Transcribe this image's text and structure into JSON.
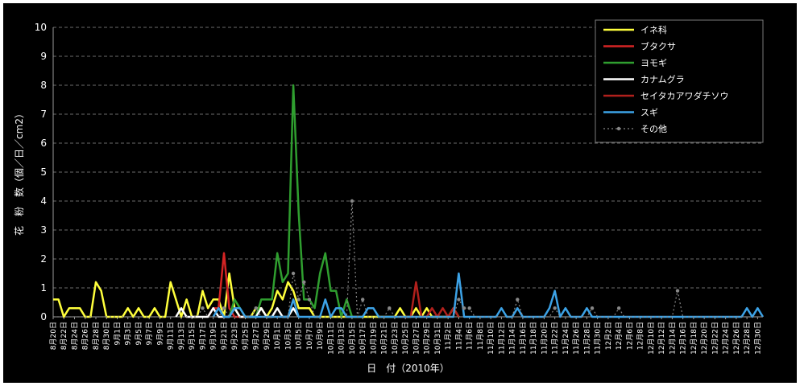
{
  "chart_data": {
    "type": "line",
    "title": "",
    "xlabel": "日　付（2010年）",
    "ylabel": "花　粉　数（個／日／cm2）",
    "ylim": [
      0,
      10
    ],
    "yticks": [
      0,
      1,
      2,
      3,
      4,
      5,
      6,
      7,
      8,
      9,
      10
    ],
    "grid": true,
    "legend_position": "top-right",
    "start_date": "2010-08-20",
    "end_date": "2010-12-31",
    "x_tick_labels": [
      "8月20日",
      "8月22日",
      "8月24日",
      "8月26日",
      "8月28日",
      "8月30日",
      "9月1日",
      "9月3日",
      "9月5日",
      "9月7日",
      "9月9日",
      "9月11日",
      "9月13日",
      "9月15日",
      "9月17日",
      "9月19日",
      "9月21日",
      "9月23日",
      "9月25日",
      "9月27日",
      "9月29日",
      "10月1日",
      "10月3日",
      "10月5日",
      "10月7日",
      "10月9日",
      "10月11日",
      "10月13日",
      "10月15日",
      "10月17日",
      "10月19日",
      "10月21日",
      "10月23日",
      "10月25日",
      "10月27日",
      "10月29日",
      "10月31日",
      "11月2日",
      "11月4日",
      "11月6日",
      "11月8日",
      "11月10日",
      "11月12日",
      "11月14日",
      "11月16日",
      "11月18日",
      "11月20日",
      "11月22日",
      "11月24日",
      "11月26日",
      "11月28日",
      "11月30日",
      "12月2日",
      "12月4日",
      "12月6日",
      "12月8日",
      "12月10日",
      "12月12日",
      "12月14日",
      "12月16日",
      "12月18日",
      "12月20日",
      "12月22日",
      "12月24日",
      "12月26日",
      "12月28日",
      "12月30日"
    ],
    "series": [
      {
        "name": "イネ科",
        "color": "#ffff3c",
        "style": "solid",
        "points": [
          [
            "8月20日",
            0.6
          ],
          [
            "8月21日",
            0.6
          ],
          [
            "8月22日",
            0
          ],
          [
            "8月23日",
            0.3
          ],
          [
            "8月24日",
            0.3
          ],
          [
            "8月25日",
            0.3
          ],
          [
            "8月26日",
            0
          ],
          [
            "8月27日",
            0
          ],
          [
            "8月28日",
            1.2
          ],
          [
            "8月29日",
            0.9
          ],
          [
            "8月30日",
            0
          ],
          [
            "8月31日",
            0
          ],
          [
            "9月1日",
            0
          ],
          [
            "9月2日",
            0
          ],
          [
            "9月3日",
            0.3
          ],
          [
            "9月4日",
            0
          ],
          [
            "9月5日",
            0.3
          ],
          [
            "9月6日",
            0
          ],
          [
            "9月7日",
            0
          ],
          [
            "9月8日",
            0.3
          ],
          [
            "9月9日",
            0
          ],
          [
            "9月10日",
            0
          ],
          [
            "9月11日",
            1.2
          ],
          [
            "9月12日",
            0.6
          ],
          [
            "9月13日",
            0
          ],
          [
            "9月14日",
            0.6
          ],
          [
            "9月15日",
            0
          ],
          [
            "9月16日",
            0
          ],
          [
            "9月17日",
            0.9
          ],
          [
            "9月18日",
            0.3
          ],
          [
            "9月19日",
            0.6
          ],
          [
            "9月20日",
            0.6
          ],
          [
            "9月21日",
            0
          ],
          [
            "9月22日",
            1.5
          ],
          [
            "9月23日",
            0.3
          ],
          [
            "9月24日",
            0
          ],
          [
            "9月25日",
            0
          ],
          [
            "9月26日",
            0
          ],
          [
            "9月27日",
            0.3
          ],
          [
            "9月28日",
            0.3
          ],
          [
            "9月29日",
            0
          ],
          [
            "9月30日",
            0.3
          ],
          [
            "10月1日",
            0.9
          ],
          [
            "10月2日",
            0.6
          ],
          [
            "10月3日",
            1.2
          ],
          [
            "10月4日",
            0.9
          ],
          [
            "10月5日",
            0.3
          ],
          [
            "10月6日",
            0.3
          ],
          [
            "10月7日",
            0.3
          ],
          [
            "10月8日",
            0
          ],
          [
            "10月9日",
            0
          ],
          [
            "10月10日",
            0
          ],
          [
            "10月11日",
            0
          ],
          [
            "10月12日",
            0
          ],
          [
            "10月13日",
            0
          ],
          [
            "10月14日",
            0
          ],
          [
            "10月15日",
            0
          ],
          [
            "10月21日",
            0
          ],
          [
            "10月22日",
            0
          ],
          [
            "10月23日",
            0
          ],
          [
            "10月24日",
            0.3
          ],
          [
            "10月25日",
            0
          ],
          [
            "10月26日",
            0
          ],
          [
            "10月27日",
            0.3
          ],
          [
            "10月28日",
            0
          ],
          [
            "10月29日",
            0.3
          ],
          [
            "10月30日",
            0
          ],
          [
            "10月31日",
            0
          ],
          [
            "11月1日",
            0
          ],
          [
            "11月2日",
            0
          ],
          [
            "11月3日",
            0.3
          ],
          [
            "11月4日",
            0
          ]
        ]
      },
      {
        "name": "ブタクサ",
        "color": "#d42424",
        "style": "solid",
        "points": [
          [
            "9月18日",
            0
          ],
          [
            "9月19日",
            0.3
          ],
          [
            "9月20日",
            0.3
          ],
          [
            "9月21日",
            2.2
          ],
          [
            "9月22日",
            0.3
          ],
          [
            "9月23日",
            0
          ],
          [
            "9月24日",
            0
          ],
          [
            "9月25日",
            0
          ],
          [
            "9月26日",
            0
          ],
          [
            "9月27日",
            0
          ]
        ]
      },
      {
        "name": "ヨモギ",
        "color": "#2f9e2f",
        "style": "solid",
        "points": [
          [
            "9月22日",
            0
          ],
          [
            "9月23日",
            0.6
          ],
          [
            "9月24日",
            0.3
          ],
          [
            "9月25日",
            0
          ],
          [
            "9月26日",
            0
          ],
          [
            "9月27日",
            0
          ],
          [
            "9月28日",
            0.6
          ],
          [
            "9月29日",
            0.6
          ],
          [
            "9月30日",
            0.6
          ],
          [
            "10月1日",
            2.2
          ],
          [
            "10月2日",
            1.2
          ],
          [
            "10月3日",
            1.5
          ],
          [
            "10月4日",
            8
          ],
          [
            "10月5日",
            3.6
          ],
          [
            "10月6日",
            0.6
          ],
          [
            "10月7日",
            0.6
          ],
          [
            "10月8日",
            0.3
          ],
          [
            "10月9日",
            1.5
          ],
          [
            "10月10日",
            2.2
          ],
          [
            "10月11日",
            0.9
          ],
          [
            "10月12日",
            0.9
          ],
          [
            "10月13日",
            0
          ],
          [
            "10月14日",
            0.6
          ],
          [
            "10月15日",
            0
          ]
        ]
      },
      {
        "name": "カナムグラ",
        "color": "#ffffff",
        "style": "solid",
        "points": [
          [
            "9月12日",
            0
          ],
          [
            "9月13日",
            0.3
          ],
          [
            "9月14日",
            0
          ],
          [
            "9月15日",
            0
          ],
          [
            "9月16日",
            0
          ],
          [
            "9月17日",
            0
          ],
          [
            "9月18日",
            0
          ],
          [
            "9月19日",
            0.3
          ],
          [
            "9月20日",
            0
          ],
          [
            "9月21日",
            0
          ],
          [
            "9月22日",
            0
          ],
          [
            "9月23日",
            0.3
          ],
          [
            "9月24日",
            0
          ],
          [
            "9月25日",
            0
          ],
          [
            "9月26日",
            0
          ],
          [
            "9月27日",
            0
          ],
          [
            "9月28日",
            0.3
          ],
          [
            "9月29日",
            0
          ],
          [
            "9月30日",
            0
          ],
          [
            "10月1日",
            0.3
          ],
          [
            "10月2日",
            0
          ],
          [
            "10月3日",
            0
          ],
          [
            "10月4日",
            0.3
          ],
          [
            "10月5日",
            0
          ]
        ]
      },
      {
        "name": "セイタカアワダチソウ",
        "color": "#b0201c",
        "style": "solid",
        "points": [
          [
            "10月24日",
            0
          ],
          [
            "10月25日",
            0
          ],
          [
            "10月26日",
            0
          ],
          [
            "10月27日",
            1.2
          ],
          [
            "10月28日",
            0
          ],
          [
            "10月29日",
            0
          ],
          [
            "10月30日",
            0.3
          ],
          [
            "10月31日",
            0
          ],
          [
            "11月1日",
            0.3
          ],
          [
            "11月2日",
            0
          ],
          [
            "11月3日",
            0.3
          ],
          [
            "11月4日",
            0
          ]
        ]
      },
      {
        "name": "スギ",
        "color": "#3ca2e6",
        "style": "solid",
        "points": [
          [
            "9月19日",
            0
          ],
          [
            "9月20日",
            0.3
          ],
          [
            "9月21日",
            0
          ],
          [
            "9月22日",
            0
          ],
          [
            "9月23日",
            0.3
          ],
          [
            "9月24日",
            0.3
          ],
          [
            "9月25日",
            0
          ],
          [
            "10月3日",
            0
          ],
          [
            "10月4日",
            0.6
          ],
          [
            "10月5日",
            0
          ],
          [
            "10月9日",
            0
          ],
          [
            "10月10日",
            0.6
          ],
          [
            "10月11日",
            0
          ],
          [
            "10月12日",
            0.3
          ],
          [
            "10月13日",
            0.3
          ],
          [
            "10月14日",
            0
          ],
          [
            "10月17日",
            0
          ],
          [
            "10月18日",
            0.3
          ],
          [
            "10月19日",
            0.3
          ],
          [
            "10月20日",
            0
          ],
          [
            "11月3日",
            0
          ],
          [
            "11月4日",
            1.5
          ],
          [
            "11月5日",
            0
          ],
          [
            "11月11日",
            0
          ],
          [
            "11月12日",
            0.3
          ],
          [
            "11月13日",
            0
          ],
          [
            "11月14日",
            0
          ],
          [
            "11月15日",
            0.3
          ],
          [
            "11月16日",
            0
          ],
          [
            "11月20日",
            0
          ],
          [
            "11月21日",
            0.3
          ],
          [
            "11月22日",
            0.9
          ],
          [
            "11月23日",
            0
          ],
          [
            "11月24日",
            0.3
          ],
          [
            "11月25日",
            0
          ],
          [
            "11月27日",
            0
          ],
          [
            "11月28日",
            0.3
          ],
          [
            "11月29日",
            0
          ],
          [
            "12月27日",
            0
          ],
          [
            "12月28日",
            0.3
          ],
          [
            "12月29日",
            0
          ],
          [
            "12月30日",
            0.3
          ],
          [
            "12月31日",
            0
          ]
        ]
      },
      {
        "name": "その他",
        "color": "#888888",
        "style": "dotted",
        "points": [
          [
            "8月20日",
            0
          ],
          [
            "9月16日",
            0
          ],
          [
            "9月17日",
            0.3
          ],
          [
            "9月18日",
            0
          ],
          [
            "9月20日",
            0
          ],
          [
            "9月21日",
            0.3
          ],
          [
            "9月22日",
            0
          ],
          [
            "9月26日",
            0
          ],
          [
            "9月27日",
            0.3
          ],
          [
            "9月28日",
            0
          ],
          [
            "10月3日",
            0
          ],
          [
            "10月4日",
            1.5
          ],
          [
            "10月5日",
            0.6
          ],
          [
            "10月6日",
            1.2
          ],
          [
            "10月7日",
            0.6
          ],
          [
            "10月8日",
            0
          ],
          [
            "10月14日",
            0
          ],
          [
            "10月15日",
            4
          ],
          [
            "10月16日",
            0
          ],
          [
            "10月17日",
            0.6
          ],
          [
            "10月18日",
            0
          ],
          [
            "10月21日",
            0
          ],
          [
            "10月22日",
            0.3
          ],
          [
            "10月23日",
            0
          ],
          [
            "11月3日",
            0
          ],
          [
            "11月4日",
            0.6
          ],
          [
            "11月5日",
            0.3
          ],
          [
            "11月6日",
            0.3
          ],
          [
            "11月7日",
            0
          ],
          [
            "11月14日",
            0
          ],
          [
            "11月15日",
            0.6
          ],
          [
            "11月16日",
            0
          ],
          [
            "11月21日",
            0
          ],
          [
            "11月22日",
            0.3
          ],
          [
            "11月23日",
            0
          ],
          [
            "11月28日",
            0
          ],
          [
            "11月29日",
            0.3
          ],
          [
            "11月30日",
            0
          ],
          [
            "12月3日",
            0
          ],
          [
            "12月4日",
            0.3
          ],
          [
            "12月5日",
            0
          ],
          [
            "12月14日",
            0
          ],
          [
            "12月15日",
            0.9
          ],
          [
            "12月16日",
            0
          ],
          [
            "12月31日",
            0
          ]
        ]
      }
    ]
  }
}
